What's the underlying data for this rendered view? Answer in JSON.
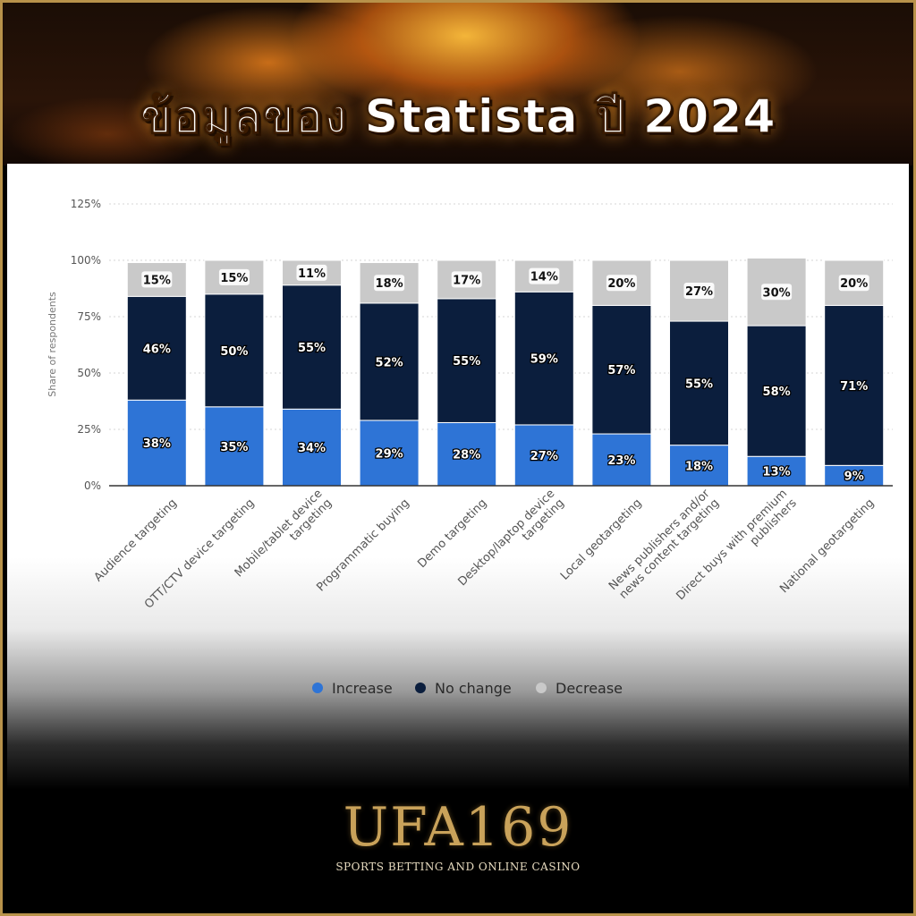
{
  "banner": {
    "title": "ข้อมูลของ Statista ปี 2024"
  },
  "chart_data": {
    "type": "bar",
    "stacked": true,
    "categories": [
      "Audience targeting",
      "OTT/CTV device targeting",
      "Mobile/tablet device targeting",
      "Programmatic buying",
      "Demo targeting",
      "Desktop/laptop device targeting",
      "Local geotargeting",
      "News publishers and/or news content targeting",
      "Direct buys with premium publishers",
      "National geotargeting"
    ],
    "category_lines": [
      [
        "Audience targeting"
      ],
      [
        "OTT/CTV device targeting"
      ],
      [
        "Mobile/tablet device",
        "targeting"
      ],
      [
        "Programmatic buying"
      ],
      [
        "Demo targeting"
      ],
      [
        "Desktop/laptop device",
        "targeting"
      ],
      [
        "Local geotargeting"
      ],
      [
        "News publishers and/or",
        "news content targeting"
      ],
      [
        "Direct buys with premium",
        "publishers"
      ],
      [
        "National geotargeting"
      ]
    ],
    "series": [
      {
        "name": "Increase",
        "color": "#2e74d6",
        "values": [
          38,
          35,
          34,
          29,
          28,
          27,
          23,
          18,
          13,
          9
        ]
      },
      {
        "name": "No change",
        "color": "#0b1e3d",
        "values": [
          46,
          50,
          55,
          52,
          55,
          59,
          57,
          55,
          58,
          71
        ]
      },
      {
        "name": "Decrease",
        "color": "#c9c9c9",
        "values": [
          15,
          15,
          11,
          18,
          17,
          14,
          20,
          27,
          30,
          20
        ]
      }
    ],
    "ylabel": "Share of respondents",
    "ylim": [
      0,
      125
    ],
    "yticks": [
      "0%",
      "25%",
      "50%",
      "75%",
      "100%",
      "125%"
    ],
    "value_suffix": "%",
    "legend_position": "bottom",
    "grid": true
  },
  "logo": {
    "name": "UFA169",
    "tagline": "SPORTS BETTING AND ONLINE CASINO"
  }
}
